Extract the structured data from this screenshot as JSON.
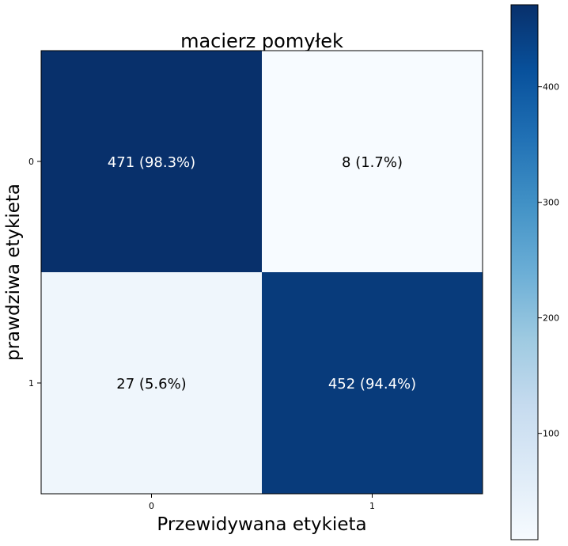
{
  "chart_data": {
    "type": "heatmap",
    "title": "macierz pomyłek",
    "xlabel": "Przewidywana etykieta",
    "ylabel": "prawdziwa etykieta",
    "x_categories": [
      "0",
      "1"
    ],
    "y_categories": [
      "0",
      "1"
    ],
    "values": [
      [
        471,
        8
      ],
      [
        27,
        452
      ]
    ],
    "cell_labels": [
      [
        "471 (98.3%)",
        "8 (1.7%)"
      ],
      [
        "27 (5.6%)",
        "452 (94.4%)"
      ]
    ],
    "colormap": "Blues",
    "colors": {
      "low": "#f7fbff",
      "high": "#08306b"
    },
    "colorbar": {
      "range": [
        8,
        471
      ],
      "ticks": [
        100,
        200,
        300,
        400
      ],
      "tick_labels": [
        "100",
        "200",
        "300",
        "400"
      ]
    },
    "grid": false
  }
}
